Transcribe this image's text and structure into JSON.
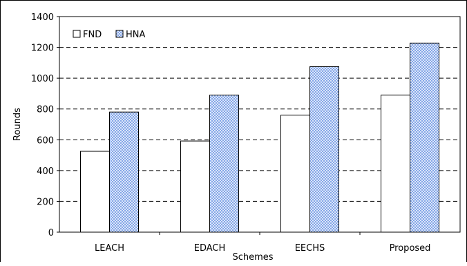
{
  "chart_data": {
    "type": "bar",
    "categories": [
      "LEACH",
      "EDACH",
      "EECHS",
      "Proposed"
    ],
    "series": [
      {
        "name": "FND",
        "values": [
          525,
          592,
          760,
          890
        ],
        "color": "#ffffff",
        "pattern": "none"
      },
      {
        "name": "HNA",
        "values": [
          780,
          890,
          1075,
          1228
        ],
        "color": "#9db8f0",
        "pattern": "crosshatch"
      }
    ],
    "title": "",
    "xlabel": "Schemes",
    "ylabel": "Rounds",
    "ylim": [
      0,
      1400
    ],
    "yticks": [
      0,
      200,
      400,
      600,
      800,
      1000,
      1200,
      1400
    ],
    "grid": "dashed horizontal",
    "legend_position": "top-left"
  }
}
